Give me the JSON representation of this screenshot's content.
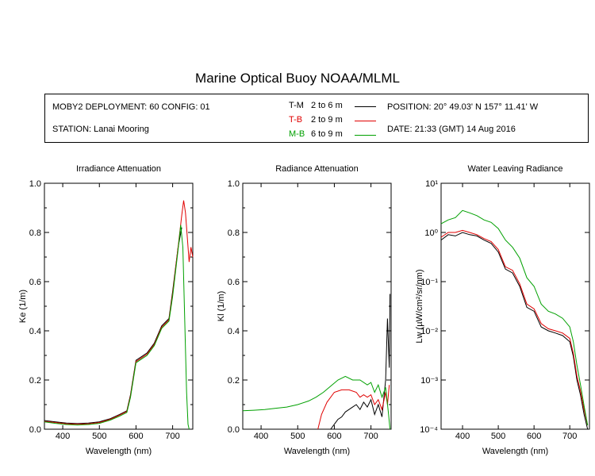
{
  "title": "Marine Optical Buoy NOAA/MLML",
  "info": {
    "deployment": "MOBY2 DEPLOYMENT: 60 CONFIG: 01",
    "station": "STATION: Lanai Mooring",
    "position": "POSITION: 20° 49.03' N   157° 11.41' W",
    "date": "DATE: 21:33 (GMT) 14 Aug 2016"
  },
  "legend": [
    {
      "code": "T-M",
      "range": "2 to 6  m",
      "color": "#000000"
    },
    {
      "code": "T-B",
      "range": "2 to 9  m",
      "color": "#e00000"
    },
    {
      "code": "M-B",
      "range": "6 to 9  m",
      "color": "#00a000"
    }
  ],
  "chart_data": [
    {
      "type": "line",
      "title": "Irradiance Attenuation",
      "xlabel": "Wavelength (nm)",
      "ylabel": "Ke  (1/m)",
      "xlim": [
        350,
        755
      ],
      "ylim": [
        0,
        1
      ],
      "xticks": [
        "400",
        "500",
        "600",
        "700"
      ],
      "yticks": [
        "0.0",
        "0.2",
        "0.4",
        "0.6",
        "0.8",
        "1.0"
      ],
      "series": [
        {
          "name": "T-M",
          "color": "#000000",
          "x": [
            350,
            380,
            410,
            440,
            470,
            500,
            530,
            555,
            575,
            585,
            600,
            615,
            630,
            650,
            670,
            690,
            700,
            715,
            725
          ],
          "y": [
            0.035,
            0.03,
            0.025,
            0.023,
            0.025,
            0.03,
            0.043,
            0.06,
            0.075,
            0.14,
            0.28,
            0.295,
            0.31,
            0.35,
            0.42,
            0.45,
            0.56,
            0.74,
            0.82
          ]
        },
        {
          "name": "T-B",
          "color": "#e00000",
          "x": [
            350,
            380,
            410,
            440,
            470,
            500,
            530,
            555,
            575,
            585,
            600,
            615,
            630,
            650,
            670,
            690,
            700,
            715,
            725,
            730,
            735,
            740,
            745,
            750,
            755
          ],
          "y": [
            0.032,
            0.027,
            0.022,
            0.02,
            0.022,
            0.027,
            0.04,
            0.057,
            0.072,
            0.135,
            0.275,
            0.29,
            0.305,
            0.345,
            0.415,
            0.445,
            0.55,
            0.74,
            0.87,
            0.93,
            0.88,
            0.78,
            0.68,
            0.74,
            0.7
          ]
        },
        {
          "name": "M-B",
          "color": "#00a000",
          "x": [
            350,
            380,
            410,
            440,
            470,
            500,
            530,
            555,
            575,
            585,
            600,
            615,
            630,
            650,
            670,
            690,
            700,
            715,
            722,
            728,
            733,
            738,
            742,
            745
          ],
          "y": [
            0.03,
            0.024,
            0.019,
            0.017,
            0.019,
            0.024,
            0.037,
            0.053,
            0.068,
            0.13,
            0.27,
            0.285,
            0.3,
            0.34,
            0.41,
            0.44,
            0.54,
            0.73,
            0.83,
            0.74,
            0.45,
            0.15,
            0.02,
            0.0
          ]
        }
      ]
    },
    {
      "type": "line",
      "title": "Radiance Attenuation",
      "xlabel": "Wavelength (nm)",
      "ylabel": "Kl  (1/m)",
      "xlim": [
        350,
        755
      ],
      "ylim": [
        0,
        1
      ],
      "xticks": [
        "400",
        "500",
        "600",
        "700"
      ],
      "yticks": [
        "0.0",
        "0.2",
        "0.4",
        "0.6",
        "0.8",
        "1.0"
      ],
      "series": [
        {
          "name": "T-M",
          "color": "#000000",
          "x": [
            590,
            600,
            610,
            620,
            630,
            640,
            650,
            660,
            670,
            680,
            690,
            700,
            710,
            720,
            730,
            740,
            745,
            750,
            752
          ],
          "y": [
            0.0,
            0.02,
            0.04,
            0.05,
            0.07,
            0.08,
            0.09,
            0.1,
            0.08,
            0.11,
            0.09,
            0.12,
            0.06,
            0.1,
            0.05,
            0.2,
            0.45,
            0.25,
            0.55
          ]
        },
        {
          "name": "T-B",
          "color": "#e00000",
          "x": [
            555,
            565,
            580,
            600,
            620,
            640,
            660,
            670,
            680,
            690,
            700,
            710,
            720,
            730,
            740,
            745,
            750
          ],
          "y": [
            0.0,
            0.06,
            0.11,
            0.15,
            0.16,
            0.16,
            0.15,
            0.13,
            0.14,
            0.13,
            0.14,
            0.1,
            0.12,
            0.08,
            0.15,
            0.1,
            0.18
          ]
        },
        {
          "name": "M-B",
          "color": "#00a000",
          "x": [
            350,
            380,
            410,
            440,
            470,
            500,
            530,
            550,
            570,
            590,
            610,
            630,
            650,
            670,
            690,
            700,
            710,
            720,
            730,
            740,
            748,
            752
          ],
          "y": [
            0.075,
            0.077,
            0.08,
            0.085,
            0.09,
            0.1,
            0.115,
            0.13,
            0.15,
            0.175,
            0.2,
            0.215,
            0.2,
            0.2,
            0.18,
            0.19,
            0.15,
            0.18,
            0.13,
            0.17,
            0.06,
            0.0
          ]
        }
      ]
    },
    {
      "type": "line",
      "title": "Water Leaving Radiance",
      "xlabel": "Wavelength (nm)",
      "ylabel": "Lw  (µW/cm²/sr/nm)",
      "yscale": "log",
      "xlim": [
        340,
        755
      ],
      "ylim": [
        0.0001,
        10
      ],
      "xticks": [
        "400",
        "500",
        "600",
        "700"
      ],
      "yticks": [
        "10⁻⁴",
        "10⁻³",
        "10⁻²",
        "10⁻¹",
        "10⁰",
        "10¹"
      ],
      "series": [
        {
          "name": "T-M",
          "color": "#000000",
          "x": [
            340,
            360,
            380,
            400,
            420,
            440,
            460,
            480,
            500,
            520,
            540,
            560,
            580,
            600,
            620,
            640,
            660,
            680,
            700,
            710,
            720,
            730,
            740,
            750
          ],
          "y": [
            0.7,
            0.9,
            0.85,
            1.0,
            0.9,
            0.85,
            0.7,
            0.6,
            0.4,
            0.18,
            0.15,
            0.08,
            0.03,
            0.025,
            0.012,
            0.01,
            0.009,
            0.008,
            0.006,
            0.003,
            0.001,
            0.0005,
            0.0002,
            0.0001
          ]
        },
        {
          "name": "T-B",
          "color": "#e00000",
          "x": [
            340,
            360,
            380,
            400,
            420,
            440,
            460,
            480,
            500,
            520,
            540,
            560,
            580,
            600,
            620,
            640,
            660,
            680,
            700,
            710,
            720,
            730,
            740,
            750
          ],
          "y": [
            0.8,
            1.0,
            1.0,
            1.1,
            1.0,
            0.9,
            0.75,
            0.65,
            0.45,
            0.2,
            0.17,
            0.09,
            0.035,
            0.028,
            0.014,
            0.011,
            0.01,
            0.009,
            0.007,
            0.0035,
            0.0012,
            0.0006,
            0.00025,
            0.00012
          ]
        },
        {
          "name": "M-B",
          "color": "#00a000",
          "x": [
            340,
            360,
            380,
            400,
            420,
            440,
            460,
            480,
            500,
            520,
            540,
            560,
            580,
            600,
            620,
            640,
            660,
            680,
            700,
            710,
            720,
            730,
            740,
            750
          ],
          "y": [
            1.5,
            1.8,
            2.0,
            2.8,
            2.5,
            2.2,
            1.8,
            1.6,
            1.2,
            0.7,
            0.5,
            0.3,
            0.12,
            0.08,
            0.035,
            0.025,
            0.022,
            0.018,
            0.012,
            0.006,
            0.002,
            0.0008,
            0.0003,
            0.00012
          ]
        }
      ]
    }
  ]
}
